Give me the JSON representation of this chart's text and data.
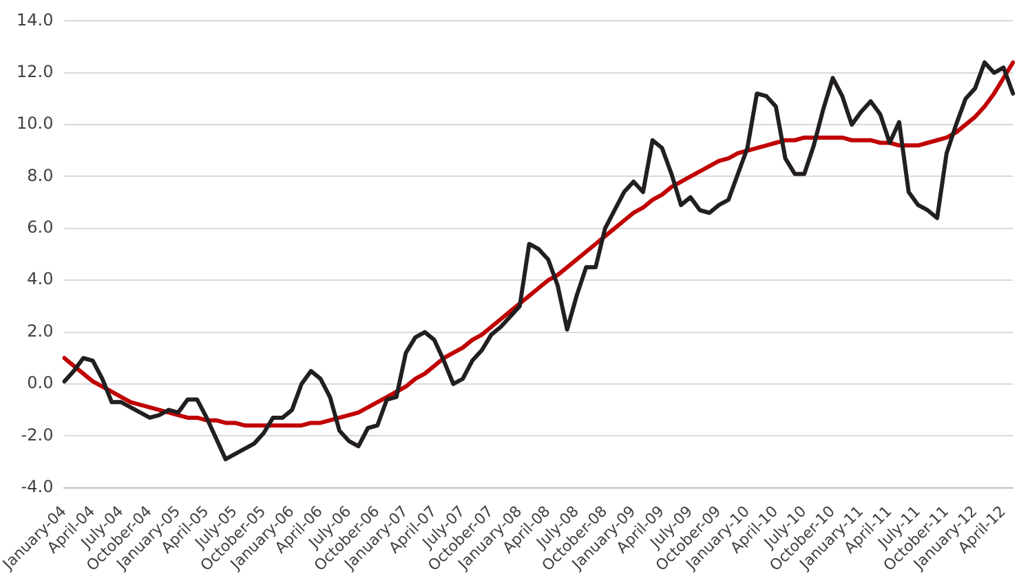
{
  "chart_data": {
    "type": "line",
    "categories": [
      "January-04",
      null,
      null,
      "April-04",
      null,
      null,
      "July-04",
      null,
      null,
      "October-04",
      null,
      null,
      "January-05",
      null,
      null,
      "April-05",
      null,
      null,
      "July-05",
      null,
      null,
      "October-05",
      null,
      null,
      "January-06",
      null,
      null,
      "April-06",
      null,
      null,
      "July-06",
      null,
      null,
      "October-06",
      null,
      null,
      "January-07",
      null,
      null,
      "April-07",
      null,
      null,
      "July-07",
      null,
      null,
      "October-07",
      null,
      null,
      "January-08",
      null,
      null,
      "April-08",
      null,
      null,
      "July-08",
      null,
      null,
      "October-08",
      null,
      null,
      "January-09",
      null,
      null,
      "April-09",
      null,
      null,
      "July-09",
      null,
      null,
      "October-09",
      null,
      null,
      "January-10",
      null,
      null,
      "April-10",
      null,
      null,
      "July-10",
      null,
      null,
      "October-10",
      null,
      null,
      "January-11",
      null,
      null,
      "April-11",
      null,
      null,
      "July-11",
      null,
      null,
      "October-11",
      null,
      null,
      "January-12",
      null,
      null,
      "April-12",
      null
    ],
    "series": [
      {
        "color": "#231f20",
        "values": [
          0.1,
          0.5,
          1.0,
          0.9,
          0.2,
          -0.7,
          -0.7,
          -0.9,
          -1.1,
          -1.3,
          -1.2,
          -1.0,
          -1.1,
          -0.6,
          -0.6,
          -1.3,
          -2.1,
          -2.9,
          -2.7,
          -2.5,
          -2.3,
          -1.9,
          -1.3,
          -1.3,
          -1.0,
          0.0,
          0.5,
          0.2,
          -0.5,
          -1.8,
          -2.2,
          -2.4,
          -1.7,
          -1.6,
          -0.6,
          -0.5,
          1.2,
          1.8,
          2.0,
          1.7,
          0.9,
          0.0,
          0.2,
          0.9,
          1.3,
          1.9,
          2.2,
          2.6,
          3.0,
          5.4,
          5.2,
          4.8,
          3.8,
          2.1,
          3.4,
          4.5,
          4.5,
          6.0,
          6.7,
          7.4,
          7.8,
          7.4,
          9.4,
          9.1,
          8.1,
          6.9,
          7.2,
          6.7,
          6.6,
          6.9,
          7.1,
          8.1,
          9.1,
          11.2,
          11.1,
          10.7,
          8.7,
          8.1,
          8.1,
          9.2,
          10.6,
          11.8,
          11.1,
          10.0,
          10.5,
          10.9,
          10.4,
          9.3,
          10.1,
          7.4,
          6.9,
          6.7,
          6.4,
          8.9,
          10.0,
          11.0,
          11.4,
          12.4,
          12.0,
          12.2,
          11.2
        ]
      },
      {
        "color": "#c00000",
        "values": [
          1.0,
          0.7,
          0.4,
          0.1,
          -0.1,
          -0.3,
          -0.5,
          -0.7,
          -0.8,
          -0.9,
          -1.0,
          -1.1,
          -1.2,
          -1.3,
          -1.3,
          -1.4,
          -1.4,
          -1.5,
          -1.5,
          -1.6,
          -1.6,
          -1.6,
          -1.6,
          -1.6,
          -1.6,
          -1.6,
          -1.5,
          -1.5,
          -1.4,
          -1.3,
          -1.2,
          -1.1,
          -0.9,
          -0.7,
          -0.5,
          -0.3,
          -0.1,
          0.2,
          0.4,
          0.7,
          1.0,
          1.2,
          1.4,
          1.7,
          1.9,
          2.2,
          2.5,
          2.8,
          3.1,
          3.4,
          3.7,
          4.0,
          4.2,
          4.5,
          4.8,
          5.1,
          5.4,
          5.7,
          6.0,
          6.3,
          6.6,
          6.8,
          7.1,
          7.3,
          7.6,
          7.8,
          8.0,
          8.2,
          8.4,
          8.6,
          8.7,
          8.9,
          9.0,
          9.1,
          9.2,
          9.3,
          9.4,
          9.4,
          9.5,
          9.5,
          9.5,
          9.5,
          9.5,
          9.4,
          9.4,
          9.4,
          9.3,
          9.3,
          9.2,
          9.2,
          9.2,
          9.3,
          9.4,
          9.5,
          9.7,
          10.0,
          10.3,
          10.7,
          11.2,
          11.8,
          12.4
        ]
      }
    ],
    "ylim": [
      -4,
      14
    ],
    "yticks": [
      {
        "value": -4,
        "label": "-4.0"
      },
      {
        "value": -2,
        "label": "-2.0"
      },
      {
        "value": 0,
        "label": "0.0"
      },
      {
        "value": 2,
        "label": "2.0"
      },
      {
        "value": 4,
        "label": "4.0"
      },
      {
        "value": 6,
        "label": "6.0"
      },
      {
        "value": 8,
        "label": "8.0"
      },
      {
        "value": 10,
        "label": "10.0"
      },
      {
        "value": 12,
        "label": "12.0"
      },
      {
        "value": 14,
        "label": "14.0"
      }
    ],
    "grid": "y",
    "legend": false,
    "marker": "none"
  }
}
